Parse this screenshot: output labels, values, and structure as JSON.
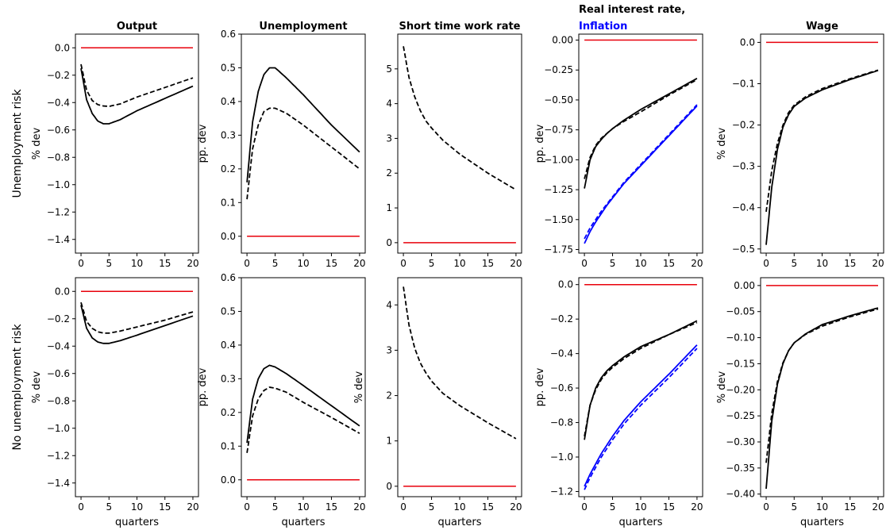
{
  "chart_data": {
    "type": "line",
    "row_labels": [
      "Unemployment risk",
      "No unemployment risk"
    ],
    "xlabel": "quarters",
    "colors": {
      "black": "#000000",
      "red": "#e8000b",
      "blue": "#0000ff"
    },
    "panels": [
      {
        "row": 0,
        "col": 0,
        "title": "Output",
        "title_second_line": "",
        "ylabel": "% dev",
        "xlim": [
          0,
          20
        ],
        "xticks": [
          0,
          5,
          10,
          15,
          20
        ],
        "ylim": [
          -1.5,
          0.1
        ],
        "yticks": [
          0.0,
          -0.2,
          -0.4,
          -0.6,
          -0.8,
          -1.0,
          -1.2,
          -1.4
        ],
        "ytick_decimals": 1,
        "series": [
          {
            "style": "solid",
            "color": "red",
            "x": [
              0,
              20
            ],
            "y": [
              0,
              0
            ]
          },
          {
            "style": "solid",
            "color": "black",
            "x": [
              0,
              1,
              2,
              3,
              4,
              5,
              7,
              10,
              15,
              20
            ],
            "y": [
              -0.15,
              -0.38,
              -0.48,
              -0.535,
              -0.555,
              -0.555,
              -0.525,
              -0.46,
              -0.37,
              -0.28
            ]
          },
          {
            "style": "dashed",
            "color": "black",
            "x": [
              0,
              1,
              2,
              3,
              4,
              5,
              7,
              10,
              15,
              20
            ],
            "y": [
              -0.12,
              -0.31,
              -0.385,
              -0.415,
              -0.425,
              -0.428,
              -0.41,
              -0.36,
              -0.29,
              -0.22
            ]
          }
        ]
      },
      {
        "row": 0,
        "col": 1,
        "title": "Unemployment",
        "title_second_line": "",
        "ylabel": "pp. dev",
        "xlim": [
          0,
          20
        ],
        "xticks": [
          0,
          5,
          10,
          15,
          20
        ],
        "ylim": [
          -0.05,
          0.6
        ],
        "yticks": [
          0.0,
          0.1,
          0.2,
          0.3,
          0.4,
          0.5,
          0.6
        ],
        "ytick_decimals": 1,
        "series": [
          {
            "style": "solid",
            "color": "red",
            "x": [
              0,
              20
            ],
            "y": [
              0,
              0
            ]
          },
          {
            "style": "solid",
            "color": "black",
            "x": [
              0,
              1,
              2,
              3,
              4,
              5,
              7,
              10,
              15,
              20
            ],
            "y": [
              0.16,
              0.34,
              0.43,
              0.48,
              0.5,
              0.5,
              0.47,
              0.42,
              0.33,
              0.25
            ]
          },
          {
            "style": "dashed",
            "color": "black",
            "x": [
              0,
              1,
              2,
              3,
              4,
              5,
              7,
              10,
              15,
              20
            ],
            "y": [
              0.11,
              0.26,
              0.33,
              0.37,
              0.38,
              0.38,
              0.365,
              0.33,
              0.265,
              0.2
            ]
          }
        ]
      },
      {
        "row": 0,
        "col": 2,
        "title": "Short time work rate",
        "title_second_line": "",
        "ylabel": "",
        "xlim": [
          0,
          20
        ],
        "xticks": [
          0,
          5,
          10,
          15,
          20
        ],
        "ylim": [
          -0.3,
          6.0
        ],
        "yticks": [
          0,
          1,
          2,
          3,
          4,
          5
        ],
        "ytick_decimals": 0,
        "series": [
          {
            "style": "solid",
            "color": "red",
            "x": [
              0,
              20
            ],
            "y": [
              0,
              0
            ]
          },
          {
            "style": "dashed",
            "color": "black",
            "x": [
              0,
              1,
              2,
              3,
              4,
              5,
              7,
              10,
              15,
              20
            ],
            "y": [
              5.65,
              4.75,
              4.2,
              3.8,
              3.5,
              3.3,
              2.95,
              2.55,
              2.0,
              1.52
            ]
          }
        ]
      },
      {
        "row": 0,
        "col": 3,
        "title": "Real interest rate,",
        "title_second_line": "Inflation",
        "ylabel": "pp. dev",
        "xlim": [
          0,
          20
        ],
        "xticks": [
          0,
          5,
          10,
          15,
          20
        ],
        "ylim": [
          -1.78,
          0.05
        ],
        "yticks": [
          0.0,
          -0.25,
          -0.5,
          -0.75,
          -1.0,
          -1.25,
          -1.5,
          -1.75
        ],
        "ytick_decimals": 2,
        "series": [
          {
            "style": "solid",
            "color": "red",
            "x": [
              0,
              20
            ],
            "y": [
              0,
              0
            ]
          },
          {
            "style": "solid",
            "color": "black",
            "x": [
              0,
              1,
              2,
              3,
              4,
              5,
              7,
              10,
              15,
              20
            ],
            "y": [
              -1.24,
              -1.0,
              -0.89,
              -0.83,
              -0.78,
              -0.74,
              -0.67,
              -0.58,
              -0.45,
              -0.32
            ]
          },
          {
            "style": "dashed",
            "color": "black",
            "x": [
              0,
              1,
              2,
              3,
              4,
              5,
              7,
              10,
              15,
              20
            ],
            "y": [
              -1.16,
              -0.98,
              -0.88,
              -0.82,
              -0.78,
              -0.74,
              -0.68,
              -0.6,
              -0.46,
              -0.33
            ]
          },
          {
            "style": "solid",
            "color": "blue",
            "x": [
              0,
              1,
              2,
              3,
              4,
              5,
              7,
              10,
              15,
              20
            ],
            "y": [
              -1.7,
              -1.6,
              -1.52,
              -1.45,
              -1.38,
              -1.32,
              -1.2,
              -1.05,
              -0.8,
              -0.55
            ]
          },
          {
            "style": "dashed",
            "color": "blue",
            "x": [
              0,
              1,
              2,
              3,
              4,
              5,
              7,
              10,
              15,
              20
            ],
            "y": [
              -1.66,
              -1.57,
              -1.5,
              -1.43,
              -1.37,
              -1.31,
              -1.19,
              -1.04,
              -0.79,
              -0.54
            ]
          }
        ]
      },
      {
        "row": 0,
        "col": 4,
        "title": "Wage",
        "title_second_line": "",
        "ylabel": "% dev",
        "xlim": [
          0,
          20
        ],
        "xticks": [
          0,
          5,
          10,
          15,
          20
        ],
        "ylim": [
          -0.51,
          0.02
        ],
        "yticks": [
          0.0,
          -0.1,
          -0.2,
          -0.3,
          -0.4,
          -0.5
        ],
        "ytick_decimals": 1,
        "series": [
          {
            "style": "solid",
            "color": "red",
            "x": [
              0,
              20
            ],
            "y": [
              0,
              0
            ]
          },
          {
            "style": "solid",
            "color": "black",
            "x": [
              0,
              1,
              2,
              3,
              4,
              5,
              7,
              10,
              15,
              20
            ],
            "y": [
              -0.49,
              -0.35,
              -0.26,
              -0.205,
              -0.175,
              -0.155,
              -0.135,
              -0.115,
              -0.09,
              -0.068
            ]
          },
          {
            "style": "dashed",
            "color": "black",
            "x": [
              0,
              1,
              2,
              3,
              4,
              5,
              7,
              10,
              15,
              20
            ],
            "y": [
              -0.41,
              -0.31,
              -0.245,
              -0.2,
              -0.17,
              -0.152,
              -0.132,
              -0.112,
              -0.088,
              -0.067
            ]
          }
        ]
      },
      {
        "row": 1,
        "col": 0,
        "title": "",
        "title_second_line": "",
        "ylabel": "% dev",
        "xlim": [
          0,
          20
        ],
        "xticks": [
          0,
          5,
          10,
          15,
          20
        ],
        "ylim": [
          -1.5,
          0.1
        ],
        "yticks": [
          0.0,
          -0.2,
          -0.4,
          -0.6,
          -0.8,
          -1.0,
          -1.2,
          -1.4
        ],
        "ytick_decimals": 1,
        "series": [
          {
            "style": "solid",
            "color": "red",
            "x": [
              0,
              20
            ],
            "y": [
              0,
              0
            ]
          },
          {
            "style": "solid",
            "color": "black",
            "x": [
              0,
              1,
              2,
              3,
              4,
              5,
              7,
              10,
              15,
              20
            ],
            "y": [
              -0.1,
              -0.27,
              -0.34,
              -0.37,
              -0.38,
              -0.38,
              -0.36,
              -0.32,
              -0.25,
              -0.18
            ]
          },
          {
            "style": "dashed",
            "color": "black",
            "x": [
              0,
              1,
              2,
              3,
              4,
              5,
              7,
              10,
              15,
              20
            ],
            "y": [
              -0.08,
              -0.22,
              -0.27,
              -0.295,
              -0.305,
              -0.305,
              -0.29,
              -0.26,
              -0.21,
              -0.15
            ]
          }
        ]
      },
      {
        "row": 1,
        "col": 1,
        "title": "",
        "title_second_line": "",
        "ylabel": "pp. dev",
        "xlim": [
          0,
          20
        ],
        "xticks": [
          0,
          5,
          10,
          15,
          20
        ],
        "ylim": [
          -0.05,
          0.6
        ],
        "yticks": [
          0.0,
          0.1,
          0.2,
          0.3,
          0.4,
          0.5,
          0.6
        ],
        "ytick_decimals": 1,
        "series": [
          {
            "style": "solid",
            "color": "red",
            "x": [
              0,
              20
            ],
            "y": [
              0,
              0
            ]
          },
          {
            "style": "solid",
            "color": "black",
            "x": [
              0,
              1,
              2,
              3,
              4,
              5,
              7,
              10,
              15,
              20
            ],
            "y": [
              0.11,
              0.24,
              0.3,
              0.33,
              0.34,
              0.335,
              0.315,
              0.28,
              0.22,
              0.16
            ]
          },
          {
            "style": "dashed",
            "color": "black",
            "x": [
              0,
              1,
              2,
              3,
              4,
              5,
              7,
              10,
              15,
              20
            ],
            "y": [
              0.08,
              0.19,
              0.24,
              0.265,
              0.275,
              0.272,
              0.26,
              0.23,
              0.185,
              0.138
            ]
          }
        ]
      },
      {
        "row": 1,
        "col": 2,
        "title": "",
        "title_second_line": "",
        "ylabel": "% dev",
        "xlim": [
          0,
          20
        ],
        "xticks": [
          0,
          5,
          10,
          15,
          20
        ],
        "ylim": [
          -0.23,
          4.6
        ],
        "yticks": [
          0,
          1,
          2,
          3,
          4
        ],
        "ytick_decimals": 0,
        "series": [
          {
            "style": "solid",
            "color": "red",
            "x": [
              0,
              20
            ],
            "y": [
              0,
              0
            ]
          },
          {
            "style": "dashed",
            "color": "black",
            "x": [
              0,
              1,
              2,
              3,
              4,
              5,
              7,
              10,
              15,
              20
            ],
            "y": [
              4.4,
              3.55,
              3.05,
              2.72,
              2.5,
              2.32,
              2.05,
              1.78,
              1.4,
              1.05
            ]
          }
        ]
      },
      {
        "row": 1,
        "col": 3,
        "title": "",
        "title_second_line": "",
        "ylabel": "pp. dev",
        "xlim": [
          0,
          20
        ],
        "xticks": [
          0,
          5,
          10,
          15,
          20
        ],
        "ylim": [
          -1.23,
          0.04
        ],
        "yticks": [
          0.0,
          -0.2,
          -0.4,
          -0.6,
          -0.8,
          -1.0,
          -1.2
        ],
        "ytick_decimals": 1,
        "series": [
          {
            "style": "solid",
            "color": "red",
            "x": [
              0,
              20
            ],
            "y": [
              0,
              0
            ]
          },
          {
            "style": "solid",
            "color": "black",
            "x": [
              0,
              1,
              2,
              3,
              4,
              5,
              7,
              10,
              15,
              20
            ],
            "y": [
              -0.9,
              -0.7,
              -0.6,
              -0.54,
              -0.5,
              -0.47,
              -0.42,
              -0.36,
              -0.29,
              -0.21
            ]
          },
          {
            "style": "dashed",
            "color": "black",
            "x": [
              0,
              1,
              2,
              3,
              4,
              5,
              7,
              10,
              15,
              20
            ],
            "y": [
              -0.88,
              -0.7,
              -0.61,
              -0.55,
              -0.51,
              -0.48,
              -0.43,
              -0.37,
              -0.29,
              -0.22
            ]
          },
          {
            "style": "solid",
            "color": "blue",
            "x": [
              0,
              1,
              2,
              3,
              4,
              5,
              7,
              10,
              15,
              20
            ],
            "y": [
              -1.17,
              -1.1,
              -1.04,
              -0.98,
              -0.93,
              -0.88,
              -0.79,
              -0.68,
              -0.52,
              -0.35
            ]
          },
          {
            "style": "dashed",
            "color": "blue",
            "x": [
              0,
              1,
              2,
              3,
              4,
              5,
              7,
              10,
              15,
              20
            ],
            "y": [
              -1.19,
              -1.12,
              -1.06,
              -1.0,
              -0.95,
              -0.9,
              -0.81,
              -0.7,
              -0.54,
              -0.37
            ]
          }
        ]
      },
      {
        "row": 1,
        "col": 4,
        "title": "",
        "title_second_line": "",
        "ylabel": "% dev",
        "xlim": [
          0,
          20
        ],
        "xticks": [
          0,
          5,
          10,
          15,
          20
        ],
        "ylim": [
          -0.405,
          0.015
        ],
        "yticks": [
          0.0,
          -0.05,
          -0.1,
          -0.15,
          -0.2,
          -0.25,
          -0.3,
          -0.35,
          -0.4
        ],
        "ytick_decimals": 2,
        "series": [
          {
            "style": "solid",
            "color": "red",
            "x": [
              0,
              20
            ],
            "y": [
              0,
              0
            ]
          },
          {
            "style": "solid",
            "color": "black",
            "x": [
              0,
              1,
              2,
              3,
              4,
              5,
              7,
              10,
              15,
              20
            ],
            "y": [
              -0.39,
              -0.26,
              -0.19,
              -0.15,
              -0.125,
              -0.11,
              -0.093,
              -0.075,
              -0.058,
              -0.043
            ]
          },
          {
            "style": "dashed",
            "color": "black",
            "x": [
              0,
              1,
              2,
              3,
              4,
              5,
              7,
              10,
              15,
              20
            ],
            "y": [
              -0.34,
              -0.245,
              -0.185,
              -0.148,
              -0.125,
              -0.11,
              -0.094,
              -0.078,
              -0.06,
              -0.045
            ]
          }
        ]
      }
    ]
  }
}
